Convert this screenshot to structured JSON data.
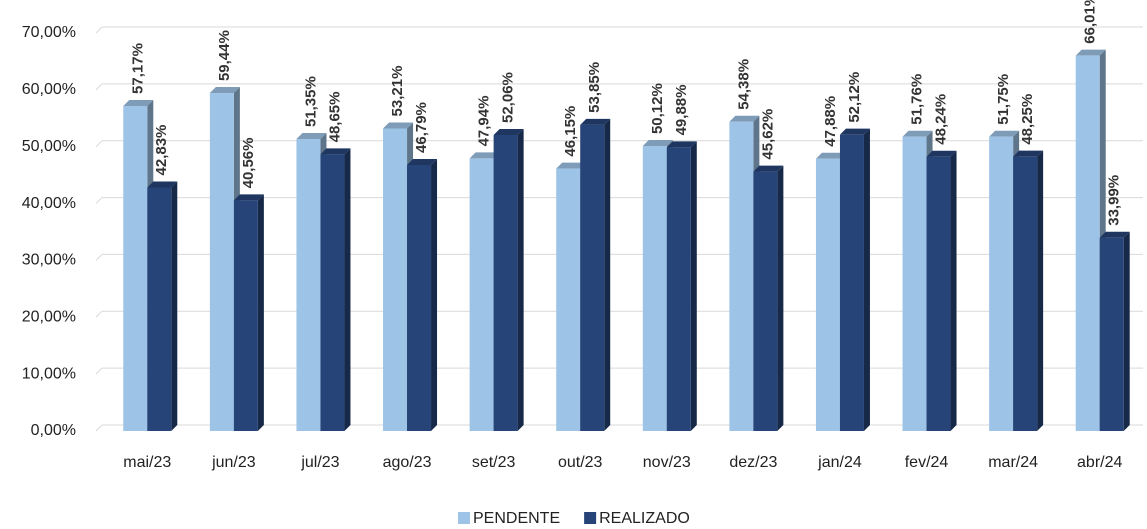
{
  "chart_data": {
    "type": "bar3d",
    "categories": [
      "mai/23",
      "jun/23",
      "jul/23",
      "ago/23",
      "set/23",
      "out/23",
      "nov/23",
      "dez/23",
      "jan/24",
      "fev/24",
      "mar/24",
      "abr/24"
    ],
    "series": [
      {
        "name": "PENDENTE",
        "color": "#9dc3e6",
        "values": [
          57.17,
          59.44,
          51.35,
          53.21,
          47.94,
          46.15,
          50.12,
          54.38,
          47.88,
          51.76,
          51.75,
          66.01
        ],
        "value_labels": [
          "57,17%",
          "59,44%",
          "51,35%",
          "53,21%",
          "47,94%",
          "46,15%",
          "50,12%",
          "54,38%",
          "47,88%",
          "51,76%",
          "51,75%",
          "66,01%"
        ]
      },
      {
        "name": "REALIZADO",
        "color": "#264478",
        "values": [
          42.83,
          40.56,
          48.65,
          46.79,
          52.06,
          53.85,
          49.88,
          45.62,
          52.12,
          48.24,
          48.25,
          33.99
        ],
        "value_labels": [
          "42,83%",
          "40,56%",
          "48,65%",
          "46,79%",
          "52,06%",
          "53,85%",
          "49,88%",
          "45,62%",
          "52,12%",
          "48,24%",
          "48,25%",
          "33,99%"
        ]
      }
    ],
    "ylim": [
      0,
      70
    ],
    "yticks": [
      {
        "value": 0,
        "label": "0,00%"
      },
      {
        "value": 10,
        "label": "10,00%"
      },
      {
        "value": 20,
        "label": "20,00%"
      },
      {
        "value": 30,
        "label": "30,00%"
      },
      {
        "value": 40,
        "label": "40,00%"
      },
      {
        "value": 50,
        "label": "50,00%"
      },
      {
        "value": 60,
        "label": "60,00%"
      },
      {
        "value": 70,
        "label": "70,00%"
      }
    ],
    "grid": true,
    "legend": "bottom"
  }
}
